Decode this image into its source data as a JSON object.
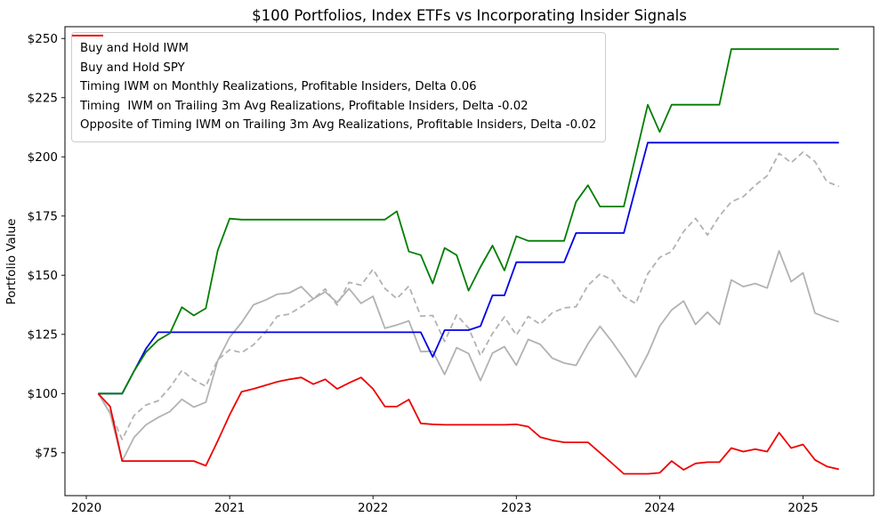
{
  "chart_data": {
    "type": "line",
    "title": "$100 Portfolios, Index ETFs vs Incorporating Insider Signals",
    "xlabel": "",
    "ylabel": "Portfolio Value",
    "grid": false,
    "legend_position": "upper left",
    "ylim": [
      56.8,
      254.9
    ],
    "y_ticks": [
      75,
      100,
      125,
      150,
      175,
      200,
      225,
      250
    ],
    "y_tick_labels": [
      "$75",
      "$100",
      "$125",
      "$150",
      "$175",
      "$200",
      "$225",
      "$250"
    ],
    "x_tick_labels": [
      "2020",
      "2021",
      "2022",
      "2023",
      "2024",
      "2025"
    ],
    "months": [
      "2020-01",
      "2020-02",
      "2020-03",
      "2020-04",
      "2020-05",
      "2020-06",
      "2020-07",
      "2020-08",
      "2020-09",
      "2020-10",
      "2020-11",
      "2020-12",
      "2021-01",
      "2021-02",
      "2021-03",
      "2021-04",
      "2021-05",
      "2021-06",
      "2021-07",
      "2021-08",
      "2021-09",
      "2021-10",
      "2021-11",
      "2021-12",
      "2022-01",
      "2022-02",
      "2022-03",
      "2022-04",
      "2022-05",
      "2022-06",
      "2022-07",
      "2022-08",
      "2022-09",
      "2022-10",
      "2022-11",
      "2022-12",
      "2023-01",
      "2023-02",
      "2023-03",
      "2023-04",
      "2023-05",
      "2023-06",
      "2023-07",
      "2023-08",
      "2023-09",
      "2023-10",
      "2023-11",
      "2023-12",
      "2024-01",
      "2024-02",
      "2024-03",
      "2024-04",
      "2024-05",
      "2024-06",
      "2024-07",
      "2024-08",
      "2024-09",
      "2024-10",
      "2024-11",
      "2024-12",
      "2025-01",
      "2025-02",
      "2025-03"
    ],
    "series": [
      {
        "name": "Buy and Hold IWM",
        "color": "#b2b2b2",
        "style": "solid",
        "values": [
          100,
          91.6,
          71.5,
          81.5,
          86.8,
          89.9,
          92.4,
          97.6,
          94.3,
          96.3,
          114.0,
          123.8,
          130.0,
          137.5,
          139.5,
          142.0,
          142.5,
          145.2,
          140.0,
          143.0,
          138.5,
          144.3,
          138.1,
          141.1,
          127.6,
          129.0,
          130.7,
          117.7,
          117.9,
          108.1,
          119.4,
          116.9,
          105.5,
          117.1,
          119.8,
          112.0,
          122.9,
          120.8,
          115.0,
          112.9,
          111.9,
          121.0,
          128.4,
          122.0,
          114.8,
          107.0,
          116.6,
          128.5,
          135.3,
          139.1,
          129.2,
          134.4,
          129.2,
          148.0,
          145.2,
          146.5,
          144.6,
          160.3,
          147.3,
          151.0,
          134.0,
          132.0,
          130.3
        ]
      },
      {
        "name": "Buy and Hold SPY",
        "color": "#b2b2b2",
        "style": "dashed",
        "values": [
          100,
          92.1,
          80.6,
          90.8,
          95.2,
          96.9,
          102.6,
          109.8,
          105.7,
          103.1,
          114.3,
          118.5,
          117.3,
          120.6,
          126.0,
          132.7,
          133.6,
          136.7,
          140.0,
          144.2,
          137.4,
          147.0,
          145.8,
          152.5,
          144.4,
          140.1,
          145.4,
          132.7,
          133.0,
          122.0,
          133.2,
          127.7,
          116.0,
          125.4,
          132.4,
          124.7,
          132.6,
          129.3,
          134.1,
          136.2,
          136.7,
          145.7,
          150.5,
          148.1,
          141.0,
          138.0,
          150.6,
          157.5,
          160.0,
          168.5,
          174.0,
          167.0,
          175.0,
          181.0,
          183.2,
          188.0,
          192.0,
          201.5,
          197.5,
          202.0,
          198.0,
          189.5,
          187.5
        ]
      },
      {
        "name": "Timing IWM on Monthly Realizations, Profitable Insiders, Delta 0.06",
        "color": "#0000e6",
        "style": "solid",
        "values": [
          100,
          100,
          100,
          109.5,
          119.0,
          125.9,
          125.9,
          125.9,
          125.9,
          125.9,
          125.9,
          125.9,
          125.9,
          125.9,
          125.9,
          125.9,
          125.9,
          125.9,
          125.9,
          125.9,
          125.9,
          125.9,
          125.9,
          125.9,
          125.9,
          125.9,
          125.9,
          125.9,
          115.5,
          126.8,
          126.8,
          126.8,
          128.5,
          141.5,
          141.5,
          155.5,
          155.5,
          155.5,
          155.5,
          155.5,
          167.8,
          167.8,
          167.8,
          167.8,
          167.8,
          187.0,
          206.0,
          206.0,
          206.0,
          206.0,
          206.0,
          206.0,
          206.0,
          206.0,
          206.0,
          206.0,
          206.0,
          206.0,
          206.0,
          206.0,
          206.0,
          206.0,
          206.0
        ]
      },
      {
        "name": "Timing  IWM on Trailing 3m Avg Realizations, Profitable Insiders, Delta -0.02",
        "color": "#007d00",
        "style": "solid",
        "values": [
          100,
          100,
          100,
          109.5,
          117.5,
          122.5,
          125.5,
          136.5,
          133.0,
          136.0,
          160.5,
          173.9,
          173.5,
          173.5,
          173.5,
          173.5,
          173.5,
          173.5,
          173.5,
          173.5,
          173.5,
          173.5,
          173.5,
          173.5,
          173.5,
          177.0,
          160.0,
          158.5,
          146.5,
          161.5,
          158.5,
          143.5,
          153.5,
          162.5,
          152.0,
          166.5,
          164.5,
          164.5,
          164.5,
          164.5,
          181.0,
          188.0,
          179.0,
          179.0,
          179.0,
          200.5,
          222.0,
          210.5,
          222.0,
          222.0,
          222.0,
          222.0,
          222.0,
          245.5,
          245.5,
          245.5,
          245.5,
          245.5,
          245.5,
          245.5,
          245.5,
          245.5,
          245.5
        ]
      },
      {
        "name": "Opposite of Timing IWM on Trailing 3m Avg Realizations, Profitable Insiders, Delta -0.02",
        "color": "#ee0000",
        "style": "solid",
        "values": [
          100,
          94.5,
          71.5,
          71.5,
          71.5,
          71.5,
          71.5,
          71.5,
          71.5,
          69.5,
          80.0,
          91.0,
          100.8,
          102.0,
          103.5,
          105.0,
          106.0,
          106.8,
          104.0,
          106.0,
          102.0,
          104.5,
          106.8,
          102.0,
          94.5,
          94.5,
          97.5,
          87.4,
          87.0,
          86.8,
          86.8,
          86.8,
          86.8,
          86.8,
          86.8,
          87.0,
          86.0,
          81.6,
          80.3,
          79.4,
          79.4,
          79.4,
          75.0,
          70.6,
          66.1,
          66.1,
          66.1,
          66.5,
          71.5,
          67.8,
          70.5,
          71.0,
          71.0,
          77.0,
          75.5,
          76.5,
          75.5,
          83.5,
          77.0,
          78.5,
          72.0,
          69.2,
          68.0
        ]
      }
    ]
  }
}
